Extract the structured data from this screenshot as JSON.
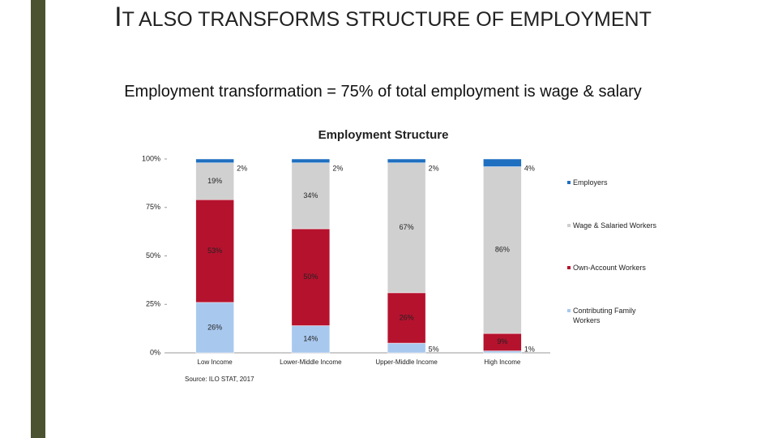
{
  "slide": {
    "title": "IT ALSO TRANSFORMS STRUCTURE OF EMPLOYMENT",
    "subtitle": "Employment transformation = 75% of total employment is wage & salary",
    "source": "Source: ILO STAT, 2017"
  },
  "chart_data": {
    "type": "stacked-bar",
    "title": "Employment Structure",
    "categories": [
      "Low Income",
      "Lower-Middle Income",
      "Upper-Middle Income",
      "High Income"
    ],
    "series": [
      {
        "name": "Contributing Family Workers",
        "color": "#a9c8ee",
        "values": [
          26,
          14,
          5,
          1
        ],
        "value_labels": [
          "26%",
          "14%",
          "5%",
          "1%"
        ]
      },
      {
        "name": "Own-Account Workers",
        "color": "#b5122e",
        "values": [
          53,
          50,
          26,
          9
        ],
        "value_labels": [
          "53%",
          "50%",
          "26%",
          "9%"
        ]
      },
      {
        "name": "Wage & Salaried Workers",
        "color": "#d0d0d0",
        "values": [
          19,
          34,
          67,
          86
        ],
        "value_labels": [
          "19%",
          "34%",
          "67%",
          "86%"
        ]
      },
      {
        "name": "Employers",
        "color": "#1f6fc0",
        "values": [
          2,
          2,
          2,
          4
        ],
        "value_labels": [
          "2%",
          "2%",
          "2%",
          "4%"
        ]
      }
    ],
    "ylim": [
      0,
      100
    ],
    "yticks": [
      {
        "value": 0,
        "label": "0%"
      },
      {
        "value": 25,
        "label": "25%"
      },
      {
        "value": 50,
        "label": "50%"
      },
      {
        "value": 75,
        "label": "75%"
      },
      {
        "value": 100,
        "label": "100%"
      }
    ],
    "legend": "right"
  }
}
